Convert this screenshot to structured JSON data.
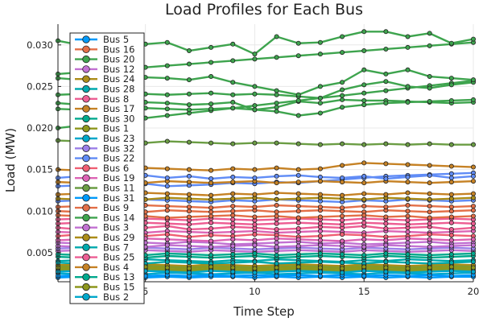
{
  "chart_data": {
    "type": "line",
    "title": "Load Profiles for Each Bus",
    "xlabel": "Time Step",
    "ylabel": "Load (MW)",
    "xlim": [
      1,
      20
    ],
    "ylim": [
      0.0015,
      0.0325
    ],
    "xticks": [
      5,
      10,
      15,
      20
    ],
    "yticks": [
      0.005,
      0.01,
      0.015,
      0.02,
      0.025,
      0.03
    ],
    "ytick_labels": [
      "0.005",
      "0.010",
      "0.015",
      "0.020",
      "0.025",
      "0.030"
    ],
    "grid": true,
    "legend_position": "top-left",
    "x": [
      1,
      2,
      3,
      4,
      5,
      6,
      7,
      8,
      9,
      10,
      11,
      12,
      13,
      14,
      15,
      16,
      17,
      18,
      19,
      20
    ],
    "series": [
      {
        "name": "Bus 5",
        "color": "#009AFA",
        "values": [
          0.002,
          0.0021,
          0.002,
          0.0021,
          0.002,
          0.0021,
          0.002,
          0.0021,
          0.0021,
          0.002,
          0.0021,
          0.002,
          0.0021,
          0.002,
          0.0021,
          0.002,
          0.0021,
          0.002,
          0.0021,
          0.0021
        ]
      },
      {
        "name": "Bus 16",
        "color": "#E36F47",
        "values": [
          0.0095,
          0.0094,
          0.0093,
          0.0095,
          0.0094,
          0.0092,
          0.0093,
          0.0094,
          0.0095,
          0.0093,
          0.0094,
          0.0092,
          0.0093,
          0.0094,
          0.0095,
          0.0093,
          0.0094,
          0.0092,
          0.0093,
          0.0094
        ]
      },
      {
        "name": "Bus 20",
        "color": "#3EA44E",
        "values": [
          0.0305,
          0.03,
          0.0302,
          0.0295,
          0.0301,
          0.0303,
          0.0293,
          0.0297,
          0.0301,
          0.0289,
          0.031,
          0.0302,
          0.0303,
          0.031,
          0.0316,
          0.0316,
          0.031,
          0.0314,
          0.0302,
          0.0307
        ]
      },
      {
        "name": "Bus 12",
        "color": "#C271D2",
        "values": [
          0.0062,
          0.0061,
          0.0063,
          0.006,
          0.0062,
          0.0061,
          0.0063,
          0.0062,
          0.006,
          0.0061,
          0.0062,
          0.0063,
          0.0061,
          0.0062,
          0.006,
          0.0061,
          0.0062,
          0.0063,
          0.0061,
          0.0062
        ]
      },
      {
        "name": "Bus 24",
        "color": "#AC8D18",
        "values": [
          0.0035,
          0.0036,
          0.0034,
          0.0035,
          0.0036,
          0.0035,
          0.0034,
          0.0036,
          0.0035,
          0.0034,
          0.0035,
          0.0036,
          0.0035,
          0.0034,
          0.0036,
          0.0035,
          0.0034,
          0.0035,
          0.0036,
          0.0035
        ]
      },
      {
        "name": "Bus 28",
        "color": "#00A9AD",
        "values": [
          0.004,
          0.0041,
          0.0039,
          0.004,
          0.0042,
          0.0041,
          0.004,
          0.0039,
          0.0041,
          0.004,
          0.0042,
          0.0041,
          0.004,
          0.0039,
          0.0041,
          0.004,
          0.0042,
          0.0041,
          0.004,
          0.0041
        ]
      },
      {
        "name": "Bus 8",
        "color": "#ED5E93",
        "values": [
          0.008,
          0.0078,
          0.0081,
          0.0079,
          0.008,
          0.0082,
          0.0078,
          0.0079,
          0.0081,
          0.008,
          0.0078,
          0.0079,
          0.0081,
          0.008,
          0.0082,
          0.0079,
          0.008,
          0.0081,
          0.0078,
          0.008
        ]
      },
      {
        "name": "Bus 17",
        "color": "#C68225",
        "values": [
          0.015,
          0.0149,
          0.0148,
          0.015,
          0.0152,
          0.0151,
          0.015,
          0.0149,
          0.0151,
          0.015,
          0.0152,
          0.015,
          0.0151,
          0.0155,
          0.0158,
          0.0157,
          0.0156,
          0.0155,
          0.0154,
          0.0153
        ]
      },
      {
        "name": "Bus 30",
        "color": "#00A98D",
        "values": [
          0.0045,
          0.0044,
          0.0046,
          0.0045,
          0.0044,
          0.0046,
          0.0045,
          0.0044,
          0.0045,
          0.0046,
          0.0044,
          0.0045,
          0.0046,
          0.0045,
          0.0044,
          0.0046,
          0.0045,
          0.0044,
          0.0045,
          0.0046
        ]
      },
      {
        "name": "Bus 1",
        "color": "#8E971D",
        "values": [
          0.003,
          0.0031,
          0.0029,
          0.003,
          0.0031,
          0.003,
          0.0029,
          0.0031,
          0.003,
          0.0029,
          0.003,
          0.0031,
          0.003,
          0.0029,
          0.0031,
          0.003,
          0.0029,
          0.003,
          0.0031,
          0.003
        ]
      },
      {
        "name": "Bus 23",
        "color": "#00A8CB",
        "values": [
          0.0025,
          0.0024,
          0.0026,
          0.0025,
          0.0024,
          0.0026,
          0.0025,
          0.0024,
          0.0025,
          0.0026,
          0.0024,
          0.0025,
          0.0026,
          0.0025,
          0.0024,
          0.0026,
          0.0025,
          0.0024,
          0.0025,
          0.0026
        ]
      },
      {
        "name": "Bus 32",
        "color": "#9B7FE8",
        "values": [
          0.0055,
          0.0056,
          0.0054,
          0.0055,
          0.0056,
          0.0055,
          0.0054,
          0.0056,
          0.0055,
          0.0054,
          0.0055,
          0.0056,
          0.0055,
          0.0054,
          0.0056,
          0.0055,
          0.0054,
          0.0055,
          0.0056,
          0.0055
        ]
      },
      {
        "name": "Bus 22",
        "color": "#608CF6",
        "values": [
          0.014,
          0.0142,
          0.0139,
          0.0141,
          0.0143,
          0.014,
          0.0142,
          0.0139,
          0.0141,
          0.014,
          0.0142,
          0.0143,
          0.0141,
          0.014,
          0.0142,
          0.0139,
          0.0141,
          0.0143,
          0.014,
          0.0142
        ]
      },
      {
        "name": "Bus 6",
        "color": "#F05F73",
        "values": [
          0.007,
          0.0072,
          0.0069,
          0.0071,
          0.007,
          0.0072,
          0.0069,
          0.0071,
          0.007,
          0.0072,
          0.0071,
          0.0069,
          0.007,
          0.0072,
          0.0071,
          0.0069,
          0.007,
          0.0072,
          0.0071,
          0.007
        ]
      },
      {
        "name": "Bus 19",
        "color": "#DD64B5",
        "values": [
          0.0065,
          0.0066,
          0.0064,
          0.0065,
          0.0067,
          0.0066,
          0.0065,
          0.0064,
          0.0066,
          0.0065,
          0.0067,
          0.0066,
          0.0065,
          0.0064,
          0.0066,
          0.0065,
          0.0067,
          0.0066,
          0.0065,
          0.0066
        ]
      },
      {
        "name": "Bus 11",
        "color": "#6B9D44",
        "values": [
          0.0185,
          0.0184,
          0.0183,
          0.0185,
          0.0182,
          0.0184,
          0.0183,
          0.0182,
          0.0181,
          0.0182,
          0.0182,
          0.0181,
          0.018,
          0.0181,
          0.018,
          0.0181,
          0.018,
          0.0181,
          0.018,
          0.018
        ]
      },
      {
        "name": "Bus 31",
        "color": "#009AFA",
        "values": [
          0.0022,
          0.0023,
          0.0022,
          0.0023,
          0.0022,
          0.0023,
          0.0022,
          0.0023,
          0.0022,
          0.0023,
          0.0022,
          0.0023,
          0.0022,
          0.0023,
          0.0022,
          0.0023,
          0.0022,
          0.0023,
          0.0022,
          0.0023
        ]
      },
      {
        "name": "Bus 9",
        "color": "#E36F47",
        "values": [
          0.0105,
          0.0106,
          0.0104,
          0.0105,
          0.0107,
          0.0106,
          0.0105,
          0.0104,
          0.0106,
          0.0105,
          0.0107,
          0.0106,
          0.0105,
          0.0104,
          0.0106,
          0.0105,
          0.0107,
          0.0106,
          0.0105,
          0.0106
        ]
      },
      {
        "name": "Bus 14",
        "color": "#3EA44E",
        "values": [
          0.026,
          0.0258,
          0.0262,
          0.0259,
          0.0261,
          0.026,
          0.0258,
          0.0262,
          0.0255,
          0.025,
          0.0245,
          0.024,
          0.025,
          0.0255,
          0.027,
          0.0265,
          0.027,
          0.0262,
          0.026,
          0.0258
        ]
      },
      {
        "name": "Bus 3",
        "color": "#C271D2",
        "values": [
          0.0058,
          0.0057,
          0.0059,
          0.0058,
          0.0057,
          0.0059,
          0.0058,
          0.0057,
          0.0058,
          0.0059,
          0.0057,
          0.0058,
          0.0059,
          0.0058,
          0.0057,
          0.0059,
          0.0058,
          0.0057,
          0.0058,
          0.0059
        ]
      },
      {
        "name": "Bus 29",
        "color": "#AC8D18",
        "values": [
          0.0115,
          0.0114,
          0.0116,
          0.0115,
          0.0114,
          0.0116,
          0.0115,
          0.0114,
          0.0115,
          0.0116,
          0.0114,
          0.0115,
          0.0116,
          0.0115,
          0.0114,
          0.0116,
          0.0115,
          0.0114,
          0.0115,
          0.0116
        ]
      },
      {
        "name": "Bus 7",
        "color": "#00A9AD",
        "values": [
          0.0038,
          0.0037,
          0.0039,
          0.0038,
          0.0037,
          0.0039,
          0.0038,
          0.0037,
          0.0038,
          0.0039,
          0.0037,
          0.0038,
          0.0039,
          0.0038,
          0.0037,
          0.0039,
          0.0038,
          0.0037,
          0.0038,
          0.0039
        ]
      },
      {
        "name": "Bus 25",
        "color": "#ED5E93",
        "values": [
          0.0085,
          0.0086,
          0.0084,
          0.0085,
          0.0086,
          0.0085,
          0.0084,
          0.0086,
          0.0085,
          0.0084,
          0.0085,
          0.0086,
          0.0085,
          0.0084,
          0.0086,
          0.0085,
          0.0084,
          0.0085,
          0.0086,
          0.0085
        ]
      },
      {
        "name": "Bus 4",
        "color": "#C68225",
        "values": [
          0.012,
          0.0121,
          0.0119,
          0.012,
          0.0122,
          0.0121,
          0.012,
          0.0119,
          0.0121,
          0.012,
          0.0122,
          0.0121,
          0.012,
          0.0119,
          0.0121,
          0.012,
          0.0122,
          0.0121,
          0.012,
          0.0121
        ]
      },
      {
        "name": "Bus 13",
        "color": "#00A98D",
        "values": [
          0.0048,
          0.0047,
          0.0049,
          0.0048,
          0.0047,
          0.0049,
          0.0048,
          0.0047,
          0.0048,
          0.0049,
          0.0047,
          0.0048,
          0.0049,
          0.0048,
          0.0047,
          0.0049,
          0.0048,
          0.0047,
          0.0048,
          0.0049
        ]
      },
      {
        "name": "Bus 15",
        "color": "#8E971D",
        "values": [
          0.0032,
          0.0033,
          0.0031,
          0.0032,
          0.0033,
          0.0032,
          0.0031,
          0.0033,
          0.0032,
          0.0031,
          0.0032,
          0.0033,
          0.0032,
          0.0031,
          0.0033,
          0.0032,
          0.0031,
          0.0032,
          0.0033,
          0.0032
        ]
      },
      {
        "name": "Bus 2",
        "color": "#00A8CB",
        "values": [
          0.0027,
          0.0028,
          0.0026,
          0.0027,
          0.0028,
          0.0027,
          0.0026,
          0.0028,
          0.0027,
          0.0026,
          0.0027,
          0.0028,
          0.0027,
          0.0026,
          0.0028,
          0.0027,
          0.0026,
          0.0027,
          0.0028,
          0.0027
        ]
      }
    ],
    "extra_series": [
      {
        "color": "#3EA44E",
        "values": [
          0.023,
          0.0228,
          0.0232,
          0.0229,
          0.0231,
          0.023,
          0.0228,
          0.0229,
          0.0231,
          0.0222,
          0.0225,
          0.0232,
          0.023,
          0.0234,
          0.0233,
          0.0233,
          0.0232,
          0.0231,
          0.023,
          0.0231
        ]
      },
      {
        "name_hidden": true,
        "color": "#3EA44E",
        "values": [
          0.02,
          0.0203,
          0.0206,
          0.0209,
          0.0212,
          0.0215,
          0.0218,
          0.0221,
          0.0224,
          0.0227,
          0.023,
          0.0233,
          0.0236,
          0.0239,
          0.0242,
          0.0245,
          0.0248,
          0.0251,
          0.0254,
          0.0257
        ]
      },
      {
        "color": "#3EA44E",
        "values": [
          0.0265,
          0.0267,
          0.0269,
          0.0271,
          0.0273,
          0.0275,
          0.0277,
          0.0279,
          0.0281,
          0.0283,
          0.0285,
          0.0287,
          0.0289,
          0.0291,
          0.0293,
          0.0295,
          0.0297,
          0.0299,
          0.0301,
          0.0303
        ]
      },
      {
        "color": "#3EA44E",
        "values": [
          0.024,
          0.0241,
          0.024,
          0.0242,
          0.0241,
          0.024,
          0.0241,
          0.0242,
          0.024,
          0.0241,
          0.024,
          0.0238,
          0.0236,
          0.0246,
          0.0252,
          0.0256,
          0.025,
          0.0248,
          0.0252,
          0.0255
        ]
      },
      {
        "color": "#3EA44E",
        "values": [
          0.0223,
          0.0222,
          0.0224,
          0.0222,
          0.0224,
          0.0223,
          0.0222,
          0.0223,
          0.0224,
          0.0222,
          0.022,
          0.0215,
          0.0218,
          0.0225,
          0.0228,
          0.023,
          0.0231,
          0.0232,
          0.0233,
          0.0234
        ]
      },
      {
        "color": "#608CF6",
        "values": [
          0.013,
          0.0131,
          0.0129,
          0.0132,
          0.0133,
          0.013,
          0.0131,
          0.0132,
          0.0134,
          0.0133,
          0.0135,
          0.0134,
          0.0136,
          0.0138,
          0.014,
          0.0142,
          0.0143,
          0.0144,
          0.0145,
          0.0146
        ]
      },
      {
        "color": "#608CF6",
        "values": [
          0.0112,
          0.0113,
          0.0111,
          0.0112,
          0.0114,
          0.0113,
          0.0112,
          0.0111,
          0.0113,
          0.0112,
          0.0114,
          0.0113,
          0.0112,
          0.0111,
          0.0113,
          0.0112,
          0.0114,
          0.0113,
          0.0112,
          0.0113
        ]
      },
      {
        "color": "#C68225",
        "values": [
          0.0135,
          0.0134,
          0.0136,
          0.0135,
          0.0134,
          0.0136,
          0.0135,
          0.0134,
          0.0135,
          0.0136,
          0.0134,
          0.0135,
          0.0136,
          0.0135,
          0.0134,
          0.0136,
          0.0135,
          0.0134,
          0.0135,
          0.0136
        ]
      },
      {
        "color": "#ED5E93",
        "values": [
          0.009,
          0.0091,
          0.0089,
          0.009,
          0.0091,
          0.009,
          0.0089,
          0.0091,
          0.009,
          0.0089,
          0.009,
          0.0091,
          0.009,
          0.0089,
          0.0091,
          0.009,
          0.0089,
          0.009,
          0.0091,
          0.009
        ]
      },
      {
        "color": "#E36F47",
        "values": [
          0.01,
          0.0099,
          0.0101,
          0.01,
          0.0099,
          0.0101,
          0.01,
          0.0099,
          0.01,
          0.0101,
          0.0099,
          0.01,
          0.0101,
          0.01,
          0.0099,
          0.0101,
          0.01,
          0.0099,
          0.01,
          0.0101
        ]
      },
      {
        "color": "#6B9D44",
        "values": [
          0.0028,
          0.0029,
          0.0027,
          0.0028,
          0.0029,
          0.0028,
          0.0027,
          0.0029,
          0.0028,
          0.0027,
          0.0028,
          0.0029,
          0.0028,
          0.0027,
          0.0029,
          0.0028,
          0.0027,
          0.0028,
          0.0029,
          0.0028
        ]
      },
      {
        "color": "#6B9D44",
        "values": [
          0.0034,
          0.0035,
          0.0033,
          0.0034,
          0.0035,
          0.0034,
          0.0033,
          0.0035,
          0.0034,
          0.0033,
          0.0034,
          0.0035,
          0.0034,
          0.0033,
          0.0035,
          0.0034,
          0.0033,
          0.0034,
          0.0035,
          0.0034
        ]
      },
      {
        "color": "#C271D2",
        "values": [
          0.0052,
          0.0053,
          0.0051,
          0.0052,
          0.0053,
          0.0052,
          0.0051,
          0.0053,
          0.0052,
          0.0051,
          0.0052,
          0.0053,
          0.0052,
          0.0051,
          0.0053,
          0.0052,
          0.0051,
          0.0052,
          0.0053,
          0.0052
        ]
      },
      {
        "color": "#DD64B5",
        "values": [
          0.0075,
          0.0074,
          0.0076,
          0.0075,
          0.0074,
          0.0076,
          0.0075,
          0.0074,
          0.0075,
          0.0076,
          0.0074,
          0.0075,
          0.0076,
          0.0075,
          0.0074,
          0.0076,
          0.0075,
          0.0074,
          0.0075,
          0.0076
        ]
      }
    ]
  }
}
